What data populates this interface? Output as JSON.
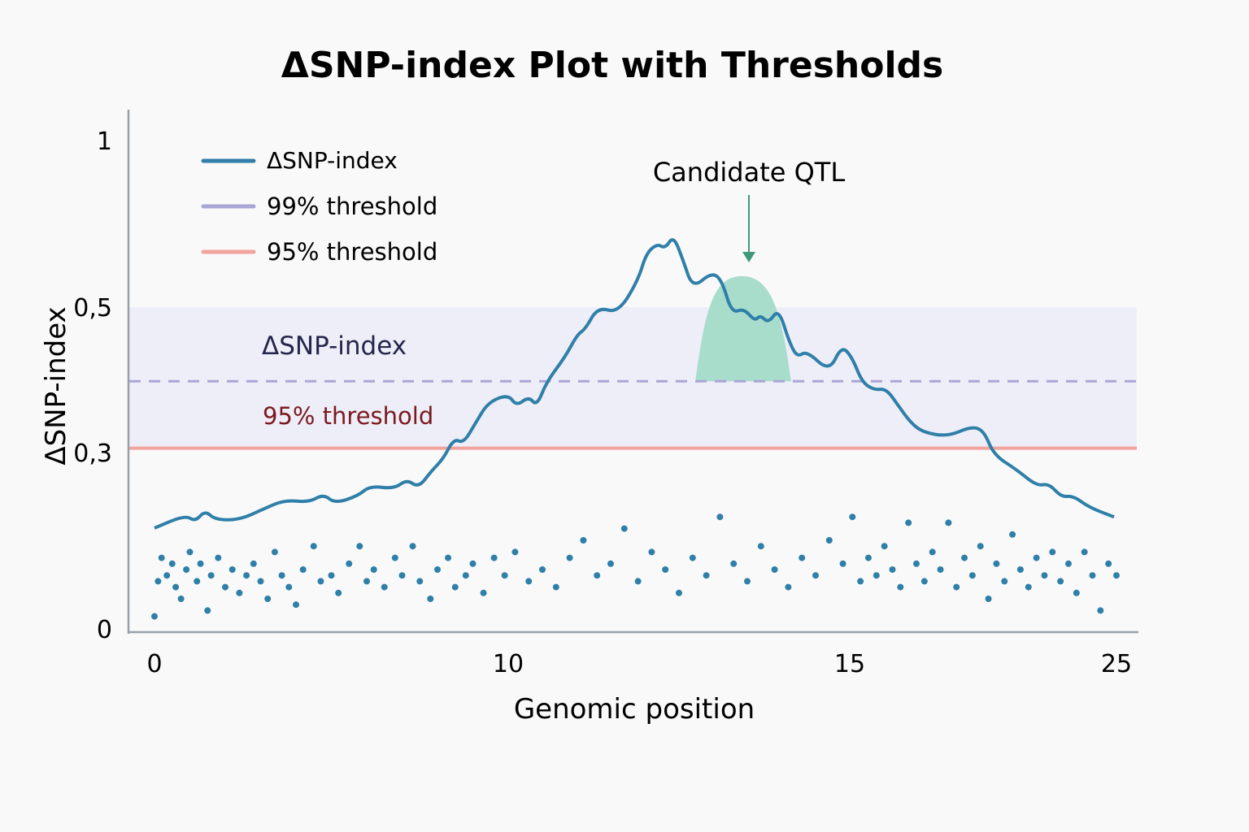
{
  "chart_data": {
    "type": "line",
    "title": "ΔSNP-index Plot with Thresholds",
    "xlabel": "Genomic position",
    "ylabel": "ΔSNP-index",
    "x_ticks": [
      "0",
      "10",
      "15",
      "25"
    ],
    "y_ticks": [
      "0",
      "0,3",
      "0,5",
      "1"
    ],
    "xlim": [
      0,
      25
    ],
    "ylim": [
      0,
      1
    ],
    "grid": false,
    "legend_position": "top-left",
    "legend": [
      "ΔSNP-index",
      "99% threshold",
      "95% threshold"
    ],
    "colors": {
      "line": "#2f7fa8",
      "dots": "#2f7fa8",
      "threshold99": "#a9a6d6",
      "threshold95": "#f2a39c",
      "band": "#eeeef8",
      "qtl": "#a8dccb",
      "arrow": "#3e9a7a"
    },
    "series": [
      {
        "name": "ΔSNP-index",
        "kind": "line",
        "points": [
          [
            0,
            0.171
          ],
          [
            0.87,
            0.193
          ],
          [
            1.15,
            0.182
          ],
          [
            1.43,
            0.201
          ],
          [
            1.72,
            0.185
          ],
          [
            2.41,
            0.185
          ],
          [
            3.1,
            0.204
          ],
          [
            3.68,
            0.219
          ],
          [
            4.37,
            0.215
          ],
          [
            4.78,
            0.229
          ],
          [
            5.1,
            0.213
          ],
          [
            5.75,
            0.226
          ],
          [
            6.09,
            0.243
          ],
          [
            6.78,
            0.238
          ],
          [
            7.13,
            0.254
          ],
          [
            7.47,
            0.24
          ],
          [
            7.82,
            0.268
          ],
          [
            8.16,
            0.289
          ],
          [
            8.46,
            0.319
          ],
          [
            8.74,
            0.313
          ],
          [
            9.08,
            0.341
          ],
          [
            9.43,
            0.369
          ],
          [
            10,
            0.38
          ],
          [
            10.12,
            0.364
          ],
          [
            10.3,
            0.377
          ],
          [
            10.42,
            0.364
          ],
          [
            10.56,
            0.397
          ],
          [
            10.83,
            0.431
          ],
          [
            11.01,
            0.462
          ],
          [
            11.13,
            0.47
          ],
          [
            11.31,
            0.5
          ],
          [
            11.61,
            0.492
          ],
          [
            11.9,
            0.58
          ],
          [
            12.02,
            0.661
          ],
          [
            12.18,
            0.69
          ],
          [
            12.3,
            0.676
          ],
          [
            12.42,
            0.715
          ],
          [
            12.56,
            0.641
          ],
          [
            12.7,
            0.556
          ],
          [
            12.98,
            0.605
          ],
          [
            13.13,
            0.58
          ],
          [
            13.27,
            0.492
          ],
          [
            13.45,
            0.498
          ],
          [
            13.61,
            0.481
          ],
          [
            13.69,
            0.489
          ],
          [
            13.81,
            0.478
          ],
          [
            13.96,
            0.498
          ],
          [
            14.11,
            0.453
          ],
          [
            14.23,
            0.431
          ],
          [
            14.37,
            0.44
          ],
          [
            14.7,
            0.411
          ],
          [
            14.88,
            0.447
          ],
          [
            15.09,
            0.431
          ],
          [
            15.46,
            0.397
          ],
          [
            15.91,
            0.386
          ],
          [
            16.37,
            0.388
          ],
          [
            16.83,
            0.364
          ],
          [
            17.29,
            0.341
          ],
          [
            17.74,
            0.328
          ],
          [
            18.66,
            0.322
          ],
          [
            19.57,
            0.336
          ],
          [
            20.03,
            0.33
          ],
          [
            20.4,
            0.296
          ],
          [
            21.25,
            0.271
          ],
          [
            22.01,
            0.243
          ],
          [
            22.47,
            0.247
          ],
          [
            22.93,
            0.224
          ],
          [
            23.38,
            0.226
          ],
          [
            23.99,
            0.206
          ],
          [
            24.91,
            0.19
          ]
        ]
      },
      {
        "kind": "scatter",
        "points": [
          [
            0,
            0.02
          ],
          [
            0.1,
            0.08
          ],
          [
            0.2,
            0.12
          ],
          [
            0.35,
            0.09
          ],
          [
            0.5,
            0.11
          ],
          [
            0.6,
            0.07
          ],
          [
            0.75,
            0.05
          ],
          [
            0.9,
            0.1
          ],
          [
            1.0,
            0.13
          ],
          [
            1.2,
            0.08
          ],
          [
            1.3,
            0.11
          ],
          [
            1.5,
            0.03
          ],
          [
            1.6,
            0.09
          ],
          [
            1.8,
            0.12
          ],
          [
            2.0,
            0.07
          ],
          [
            2.2,
            0.1
          ],
          [
            2.4,
            0.06
          ],
          [
            2.6,
            0.09
          ],
          [
            2.8,
            0.11
          ],
          [
            3.0,
            0.08
          ],
          [
            3.2,
            0.05
          ],
          [
            3.4,
            0.13
          ],
          [
            3.6,
            0.09
          ],
          [
            3.8,
            0.07
          ],
          [
            4.0,
            0.04
          ],
          [
            4.2,
            0.1
          ],
          [
            4.5,
            0.14
          ],
          [
            4.7,
            0.08
          ],
          [
            5.0,
            0.09
          ],
          [
            5.2,
            0.06
          ],
          [
            5.5,
            0.11
          ],
          [
            5.8,
            0.14
          ],
          [
            6.0,
            0.08
          ],
          [
            6.2,
            0.1
          ],
          [
            6.5,
            0.07
          ],
          [
            6.8,
            0.12
          ],
          [
            7.0,
            0.09
          ],
          [
            7.3,
            0.14
          ],
          [
            7.5,
            0.08
          ],
          [
            7.8,
            0.05
          ],
          [
            8.0,
            0.1
          ],
          [
            8.3,
            0.12
          ],
          [
            8.5,
            0.07
          ],
          [
            8.8,
            0.09
          ],
          [
            9.0,
            0.11
          ],
          [
            9.3,
            0.06
          ],
          [
            9.6,
            0.12
          ],
          [
            9.9,
            0.09
          ],
          [
            10.1,
            0.13
          ],
          [
            10.3,
            0.08
          ],
          [
            10.5,
            0.1
          ],
          [
            10.7,
            0.07
          ],
          [
            10.9,
            0.12
          ],
          [
            11.1,
            0.15
          ],
          [
            11.3,
            0.09
          ],
          [
            11.5,
            0.11
          ],
          [
            11.7,
            0.17
          ],
          [
            11.9,
            0.08
          ],
          [
            12.1,
            0.13
          ],
          [
            12.3,
            0.1
          ],
          [
            12.5,
            0.06
          ],
          [
            12.7,
            0.12
          ],
          [
            12.9,
            0.09
          ],
          [
            13.1,
            0.19
          ],
          [
            13.3,
            0.11
          ],
          [
            13.5,
            0.08
          ],
          [
            13.7,
            0.14
          ],
          [
            13.9,
            0.1
          ],
          [
            14.1,
            0.07
          ],
          [
            14.3,
            0.12
          ],
          [
            14.5,
            0.09
          ],
          [
            14.7,
            0.15
          ],
          [
            14.9,
            0.11
          ],
          [
            15.1,
            0.19
          ],
          [
            15.4,
            0.08
          ],
          [
            15.7,
            0.12
          ],
          [
            16.0,
            0.09
          ],
          [
            16.3,
            0.14
          ],
          [
            16.6,
            0.1
          ],
          [
            16.9,
            0.07
          ],
          [
            17.2,
            0.18
          ],
          [
            17.5,
            0.11
          ],
          [
            17.8,
            0.08
          ],
          [
            18.1,
            0.13
          ],
          [
            18.4,
            0.1
          ],
          [
            18.7,
            0.18
          ],
          [
            19.0,
            0.07
          ],
          [
            19.3,
            0.12
          ],
          [
            19.6,
            0.09
          ],
          [
            19.9,
            0.14
          ],
          [
            20.2,
            0.05
          ],
          [
            20.5,
            0.11
          ],
          [
            20.8,
            0.08
          ],
          [
            21.1,
            0.16
          ],
          [
            21.4,
            0.1
          ],
          [
            21.7,
            0.07
          ],
          [
            22.0,
            0.12
          ],
          [
            22.3,
            0.09
          ],
          [
            22.6,
            0.13
          ],
          [
            22.9,
            0.08
          ],
          [
            23.2,
            0.11
          ],
          [
            23.5,
            0.06
          ],
          [
            23.8,
            0.13
          ],
          [
            24.1,
            0.09
          ],
          [
            24.4,
            0.03
          ],
          [
            24.7,
            0.11
          ],
          [
            25,
            0.09
          ]
        ]
      }
    ],
    "thresholds": [
      {
        "name": "99% threshold",
        "value": 0.398,
        "style": "dashed"
      },
      {
        "name": "95% threshold",
        "value": 0.306,
        "style": "solid"
      }
    ],
    "band": {
      "label": "ΔSNP-index",
      "from": 0.306,
      "to": 0.5
    },
    "band_threshold_label": "95% threshold",
    "qtl_region": {
      "label": "Candidate QTL",
      "x_start": 12.74,
      "x_peak": 13.42,
      "x_end": 14.14,
      "y_base": 0.398,
      "y_peak": 0.593
    }
  }
}
